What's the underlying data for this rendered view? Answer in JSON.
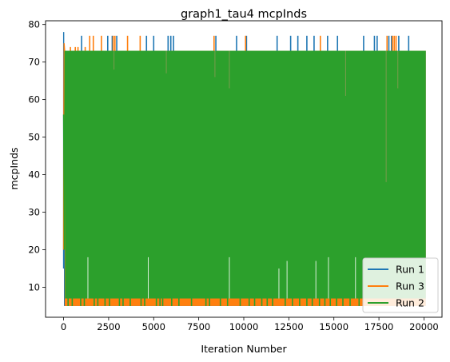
{
  "chart_data": {
    "type": "line",
    "title": "graph1_tau4 mcpInds",
    "xlabel": "Iteration Number",
    "ylabel": "mcpInds",
    "xlim": [
      -1000,
      21000
    ],
    "ylim": [
      2,
      81
    ],
    "xticks": [
      0,
      2500,
      5000,
      7500,
      10000,
      12500,
      15000,
      17500,
      20000
    ],
    "xtick_labels": [
      "0",
      "2500",
      "5000",
      "7500",
      "10000",
      "12500",
      "15000",
      "17500",
      "20000"
    ],
    "yticks": [
      10,
      20,
      30,
      40,
      50,
      60,
      70,
      80
    ],
    "ytick_labels": [
      "10",
      "20",
      "30",
      "40",
      "50",
      "60",
      "70",
      "80"
    ],
    "grid": false,
    "legend_placement": "lower-right",
    "series": [
      {
        "name": "Run 1",
        "color": "#1f77b4",
        "band": [
          5,
          73
        ],
        "start": [
          [
            0,
            15
          ],
          [
            5,
            78
          ],
          [
            10,
            60
          ],
          [
            20,
            73
          ]
        ],
        "spikes": [
          {
            "x": 1000,
            "y": 77
          },
          {
            "x": 2450,
            "y": 77
          },
          {
            "x": 2700,
            "y": 77
          },
          {
            "x": 2950,
            "y": 77
          },
          {
            "x": 4600,
            "y": 77
          },
          {
            "x": 5000,
            "y": 77
          },
          {
            "x": 5800,
            "y": 77
          },
          {
            "x": 5950,
            "y": 77
          },
          {
            "x": 6100,
            "y": 77
          },
          {
            "x": 8450,
            "y": 77
          },
          {
            "x": 9600,
            "y": 77
          },
          {
            "x": 10150,
            "y": 77
          },
          {
            "x": 11850,
            "y": 77
          },
          {
            "x": 12600,
            "y": 77
          },
          {
            "x": 13000,
            "y": 77
          },
          {
            "x": 13500,
            "y": 77
          },
          {
            "x": 13900,
            "y": 77
          },
          {
            "x": 14650,
            "y": 77
          },
          {
            "x": 15200,
            "y": 77
          },
          {
            "x": 16650,
            "y": 77
          },
          {
            "x": 17250,
            "y": 77
          },
          {
            "x": 17400,
            "y": 77
          },
          {
            "x": 18050,
            "y": 77
          },
          {
            "x": 18200,
            "y": 77
          },
          {
            "x": 18600,
            "y": 77
          },
          {
            "x": 19150,
            "y": 77
          }
        ]
      },
      {
        "name": "Run 3",
        "color": "#ff7f0e",
        "band": [
          5,
          73
        ],
        "start": [
          [
            0,
            20
          ],
          [
            15,
            56
          ],
          [
            30,
            75
          ],
          [
            60,
            73
          ]
        ],
        "spikes": [
          {
            "x": 380,
            "y": 74
          },
          {
            "x": 650,
            "y": 74
          },
          {
            "x": 800,
            "y": 74
          },
          {
            "x": 1200,
            "y": 74
          },
          {
            "x": 1450,
            "y": 77
          },
          {
            "x": 1650,
            "y": 77
          },
          {
            "x": 2100,
            "y": 77
          },
          {
            "x": 2750,
            "y": 77
          },
          {
            "x": 2850,
            "y": 77
          },
          {
            "x": 3550,
            "y": 77
          },
          {
            "x": 4250,
            "y": 77
          },
          {
            "x": 8350,
            "y": 77
          },
          {
            "x": 10100,
            "y": 77
          },
          {
            "x": 14250,
            "y": 77
          },
          {
            "x": 17950,
            "y": 77
          },
          {
            "x": 18250,
            "y": 77
          },
          {
            "x": 18350,
            "y": 77
          },
          {
            "x": 18450,
            "y": 77
          }
        ]
      },
      {
        "name": "Run 2",
        "color": "#2ca02c",
        "band": [
          7,
          73
        ],
        "start": [
          [
            0,
            56
          ],
          [
            40,
            20
          ],
          [
            80,
            73
          ]
        ],
        "spikes": [],
        "dips": [
          {
            "x": 250,
            "y": 5
          },
          {
            "x": 480,
            "y": 5
          },
          {
            "x": 950,
            "y": 5
          },
          {
            "x": 1150,
            "y": 5
          },
          {
            "x": 1700,
            "y": 5
          },
          {
            "x": 1900,
            "y": 5
          },
          {
            "x": 2300,
            "y": 5
          },
          {
            "x": 2550,
            "y": 5
          },
          {
            "x": 3100,
            "y": 5
          },
          {
            "x": 3300,
            "y": 5
          },
          {
            "x": 3700,
            "y": 5
          },
          {
            "x": 4300,
            "y": 5
          },
          {
            "x": 4500,
            "y": 5
          },
          {
            "x": 5150,
            "y": 5
          },
          {
            "x": 5350,
            "y": 5
          },
          {
            "x": 5500,
            "y": 5
          },
          {
            "x": 6000,
            "y": 5
          },
          {
            "x": 6400,
            "y": 5
          },
          {
            "x": 7100,
            "y": 5
          },
          {
            "x": 7900,
            "y": 5
          },
          {
            "x": 8100,
            "y": 5
          },
          {
            "x": 8700,
            "y": 5
          },
          {
            "x": 9100,
            "y": 5
          },
          {
            "x": 9800,
            "y": 5
          },
          {
            "x": 10300,
            "y": 5
          },
          {
            "x": 10600,
            "y": 5
          },
          {
            "x": 11000,
            "y": 5
          },
          {
            "x": 11300,
            "y": 5
          },
          {
            "x": 11600,
            "y": 5
          },
          {
            "x": 12300,
            "y": 5
          },
          {
            "x": 12700,
            "y": 5
          },
          {
            "x": 13100,
            "y": 5
          },
          {
            "x": 13500,
            "y": 5
          },
          {
            "x": 13800,
            "y": 5
          },
          {
            "x": 14200,
            "y": 5
          },
          {
            "x": 14500,
            "y": 5
          },
          {
            "x": 14800,
            "y": 5
          },
          {
            "x": 15150,
            "y": 5
          },
          {
            "x": 15500,
            "y": 5
          },
          {
            "x": 15900,
            "y": 5
          },
          {
            "x": 16400,
            "y": 5
          }
        ],
        "inner_drops": [
          {
            "x": 1350,
            "y": 18
          },
          {
            "x": 4700,
            "y": 18
          },
          {
            "x": 9200,
            "y": 18
          },
          {
            "x": 11950,
            "y": 15
          },
          {
            "x": 12400,
            "y": 17
          },
          {
            "x": 14000,
            "y": 17
          },
          {
            "x": 14700,
            "y": 18
          },
          {
            "x": 16200,
            "y": 18
          }
        ],
        "inner_peaks": [
          {
            "x": 2800,
            "y": 68
          },
          {
            "x": 5700,
            "y": 67
          },
          {
            "x": 6550,
            "y": 73
          },
          {
            "x": 8400,
            "y": 66
          },
          {
            "x": 9200,
            "y": 63
          },
          {
            "x": 15650,
            "y": 61
          },
          {
            "x": 18550,
            "y": 63
          },
          {
            "x": 17900,
            "y": 38
          }
        ]
      }
    ]
  }
}
